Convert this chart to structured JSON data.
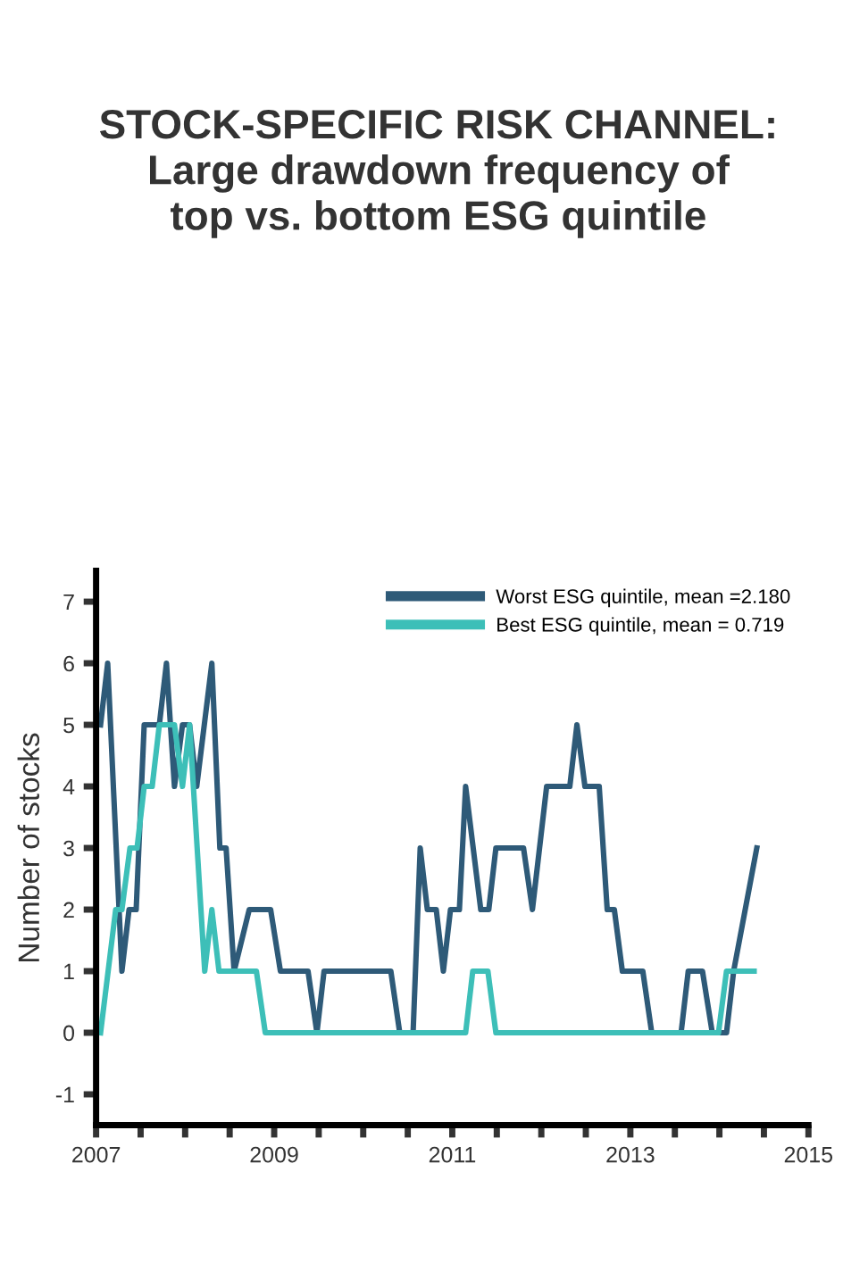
{
  "chart_data": {
    "type": "line",
    "title": "STOCK-SPECIFIC RISK CHANNEL:\nLarge drawdown frequency of\ntop vs. bottom ESG quintile",
    "ylabel": "Number of stocks",
    "series": [
      {
        "name": "Worst ESG quintile, mean =2.180",
        "color": "#2e5a78",
        "x": [
          2007.05,
          2007.13,
          2007.29,
          2007.37,
          2007.45,
          2007.54,
          2007.71,
          2007.79,
          2007.88,
          2007.97,
          2008.05,
          2008.13,
          2008.3,
          2008.39,
          2008.46,
          2008.55,
          2008.72,
          2008.96,
          2009.07,
          2009.38,
          2009.48,
          2009.56,
          2010.31,
          2010.41,
          2010.56,
          2010.64,
          2010.72,
          2010.82,
          2010.9,
          2010.98,
          2011.08,
          2011.15,
          2011.32,
          2011.41,
          2011.49,
          2011.8,
          2011.9,
          2012.06,
          2012.32,
          2012.4,
          2012.49,
          2012.65,
          2012.74,
          2012.82,
          2012.91,
          2013.14,
          2013.24,
          2013.57,
          2013.65,
          2013.81,
          2013.92,
          2014.08,
          2014.16,
          2014.42
        ],
        "values": [
          5,
          6,
          1,
          2,
          2,
          5,
          5,
          6,
          4,
          5,
          5,
          4,
          6,
          3,
          3,
          1,
          2,
          2,
          1,
          1,
          0,
          1,
          1,
          0,
          0,
          3,
          2,
          2,
          1,
          2,
          2,
          4,
          2,
          2,
          3,
          3,
          2,
          4,
          4,
          5,
          4,
          4,
          2,
          2,
          1,
          1,
          0,
          0,
          1,
          1,
          0,
          0,
          1,
          3
        ]
      },
      {
        "name": "Best ESG quintile, mean = 0.719",
        "color": "#3dbfb8",
        "x": [
          2007.05,
          2007.22,
          2007.29,
          2007.38,
          2007.46,
          2007.54,
          2007.63,
          2007.71,
          2007.88,
          2007.97,
          2008.05,
          2008.22,
          2008.3,
          2008.38,
          2008.8,
          2008.9,
          2011.15,
          2011.23,
          2011.4,
          2011.49,
          2013.99,
          2014.08,
          2014.39
        ],
        "values": [
          0,
          2,
          2,
          3,
          3,
          4,
          4,
          5,
          5,
          4,
          5,
          1,
          2,
          1,
          1,
          0,
          0,
          1,
          1,
          0,
          0,
          1,
          1
        ]
      }
    ],
    "xlim": [
      2007,
      2015
    ],
    "xticks": [
      2007,
      {
        "value": 2007.5,
        "label": null
      },
      {
        "value": 2008,
        "label": null
      },
      {
        "value": 2008.5,
        "label": null
      },
      2009,
      {
        "value": 2009.5,
        "label": null
      },
      {
        "value": 2010,
        "label": null
      },
      {
        "value": 2010.5,
        "label": null
      },
      2011,
      {
        "value": 2011.5,
        "label": null
      },
      {
        "value": 2012,
        "label": null
      },
      {
        "value": 2012.5,
        "label": null
      },
      2013,
      {
        "value": 2013.5,
        "label": null
      },
      {
        "value": 2014,
        "label": null
      },
      {
        "value": 2014.5,
        "label": null
      },
      2015
    ],
    "ylim": [
      -1.5,
      7.5
    ],
    "yticks": [
      -1,
      0,
      1,
      2,
      3,
      4,
      5,
      6,
      7
    ],
    "legend": "top right",
    "grid": false,
    "marker": "none",
    "line_style": "solid"
  }
}
